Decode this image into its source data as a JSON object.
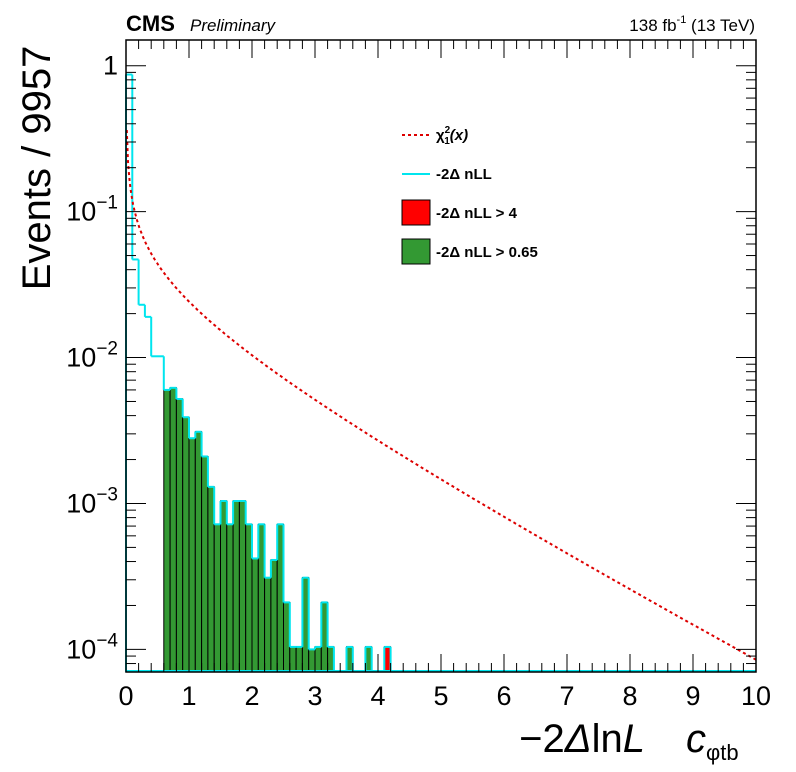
{
  "header": {
    "experiment": "CMS",
    "status": "Preliminary",
    "lumi_prefix": "138 fb",
    "lumi_exp": "-1",
    "lumi_suffix": " (13 TeV)"
  },
  "chart_data": {
    "type": "histogram",
    "ylabel": "Events / 9957",
    "xlabel": "−2ΔlnL",
    "xlabel_parts": [
      "−2",
      "Δ",
      "ln",
      "L"
    ],
    "parameter": {
      "base": "c",
      "sub": "φtb"
    },
    "xlim": [
      0,
      10
    ],
    "ylim": [
      7e-05,
      1.5
    ],
    "yscale": "log",
    "x_ticks": [
      "0",
      "1",
      "2",
      "3",
      "4",
      "5",
      "6",
      "7",
      "8",
      "9",
      "10"
    ],
    "y_ticks": [
      {
        "value": 1,
        "base": "1",
        "exp": ""
      },
      {
        "value": 0.1,
        "base": "10",
        "exp": "−1"
      },
      {
        "value": 0.01,
        "base": "10",
        "exp": "−2"
      },
      {
        "value": 0.001,
        "base": "10",
        "exp": "−3"
      },
      {
        "value": 0.0001,
        "base": "10",
        "exp": "−4"
      }
    ],
    "bin_width": 0.1,
    "legend": {
      "placement": "upper-middle",
      "entries": [
        {
          "label_base": "χ",
          "label_sup": "2",
          "label_sub": "1",
          "label_tail": "(x)",
          "style": "dashed-line",
          "color": "#dd0000"
        },
        {
          "label": "-2Δ nLL",
          "style": "line",
          "color": "#00e5ee"
        },
        {
          "label": "-2Δ nLL > 4",
          "style": "box",
          "color": "#ff0000"
        },
        {
          "label": "-2Δ nLL > 0.65",
          "style": "box",
          "color": "#339933"
        }
      ]
    },
    "series": [
      {
        "name": "-2Δ nLL",
        "kind": "step",
        "color": "#00e5ee",
        "bins": [
          [
            0.0,
            0.87
          ],
          [
            0.1,
            0.047
          ],
          [
            0.2,
            0.023
          ],
          [
            0.3,
            0.019
          ],
          [
            0.4,
            0.0102
          ],
          [
            0.5,
            0.0102
          ],
          [
            0.6,
            0.006
          ],
          [
            0.7,
            0.0062
          ],
          [
            0.8,
            0.0052
          ],
          [
            0.9,
            0.0039
          ],
          [
            1.0,
            0.0028
          ],
          [
            1.1,
            0.0031
          ],
          [
            1.2,
            0.0021
          ],
          [
            1.3,
            0.0013
          ],
          [
            1.4,
            0.00072
          ],
          [
            1.5,
            0.00104
          ],
          [
            1.6,
            0.00072
          ],
          [
            1.7,
            0.00104
          ],
          [
            1.8,
            0.00104
          ],
          [
            1.9,
            0.00072
          ],
          [
            2.0,
            0.00042
          ],
          [
            2.1,
            0.00072
          ],
          [
            2.2,
            0.00031
          ],
          [
            2.3,
            0.00041
          ],
          [
            2.4,
            0.00072
          ],
          [
            2.5,
            0.00021
          ],
          [
            2.6,
            0.000104
          ],
          [
            2.7,
            0.000104
          ],
          [
            2.8,
            0.00031
          ],
          [
            2.9,
            0.0001
          ],
          [
            3.0,
            0.000104
          ],
          [
            3.1,
            0.00021
          ],
          [
            3.2,
            0.000104
          ],
          [
            3.5,
            0.000104
          ],
          [
            3.8,
            0.000104
          ],
          [
            4.1,
            0.000104
          ]
        ]
      },
      {
        "name": "-2Δ nLL > 0.65",
        "kind": "filled",
        "color": "#339933",
        "bins": [
          [
            0.6,
            0.006
          ],
          [
            0.7,
            0.0062
          ],
          [
            0.8,
            0.0052
          ],
          [
            0.9,
            0.0039
          ],
          [
            1.0,
            0.0028
          ],
          [
            1.1,
            0.0031
          ],
          [
            1.2,
            0.0021
          ],
          [
            1.3,
            0.0013
          ],
          [
            1.4,
            0.00072
          ],
          [
            1.5,
            0.00104
          ],
          [
            1.6,
            0.00072
          ],
          [
            1.7,
            0.00104
          ],
          [
            1.8,
            0.00104
          ],
          [
            1.9,
            0.00072
          ],
          [
            2.0,
            0.00042
          ],
          [
            2.1,
            0.00072
          ],
          [
            2.2,
            0.00031
          ],
          [
            2.3,
            0.00041
          ],
          [
            2.4,
            0.00072
          ],
          [
            2.5,
            0.00021
          ],
          [
            2.6,
            0.000104
          ],
          [
            2.7,
            0.000104
          ],
          [
            2.8,
            0.00031
          ],
          [
            2.9,
            0.0001
          ],
          [
            3.0,
            0.000104
          ],
          [
            3.1,
            0.00021
          ],
          [
            3.2,
            0.000104
          ],
          [
            3.5,
            0.000104
          ],
          [
            3.8,
            0.000104
          ]
        ]
      },
      {
        "name": "-2Δ nLL > 4",
        "kind": "filled",
        "color": "#ff0000",
        "bins": [
          [
            4.1,
            0.000104
          ]
        ]
      },
      {
        "name": "χ²₁(x)",
        "kind": "dashed-curve",
        "color": "#dd0000",
        "function": "chi2_pdf_1dof_times_bin_width"
      }
    ]
  }
}
